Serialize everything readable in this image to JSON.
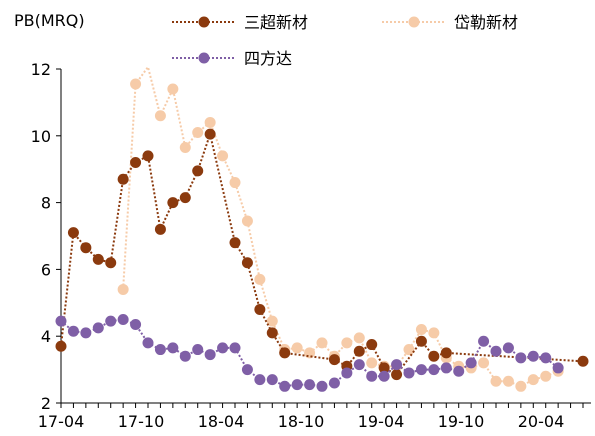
{
  "chart_data": {
    "type": "line",
    "ylabel": "PB(MRQ)",
    "ylim": [
      2,
      12
    ],
    "yticks": [
      "2",
      "4",
      "6",
      "8",
      "10",
      "12"
    ],
    "xtick_labels": [
      "17-04",
      "17-10",
      "18-04",
      "18-10",
      "19-04",
      "19-10",
      "20-04"
    ],
    "grid": false,
    "legend_position": "top",
    "series": [
      {
        "name": "三超新材",
        "color": "#8B3A0E",
        "line_style": "dotted",
        "values": [
          3.7,
          7.1,
          6.65,
          6.3,
          6.2,
          8.7,
          9.2,
          9.4,
          7.2,
          8.0,
          8.15,
          8.95,
          10.05,
          null,
          6.8,
          6.2,
          4.8,
          4.1,
          3.5,
          null,
          null,
          null,
          3.3,
          3.1,
          3.55,
          3.75,
          3.05,
          2.85,
          null,
          3.85,
          3.4,
          3.5,
          null,
          null,
          null,
          null,
          null,
          null,
          null,
          null,
          null,
          null,
          3.25
        ]
      },
      {
        "name": "岱勒新材",
        "color": "#F6CBA8",
        "line_style": "dotted",
        "values": [
          null,
          null,
          null,
          null,
          null,
          5.4,
          11.55,
          13.0,
          10.6,
          11.4,
          9.65,
          10.1,
          10.4,
          9.4,
          8.6,
          7.45,
          5.7,
          4.45,
          3.6,
          3.65,
          3.5,
          3.8,
          3.4,
          3.8,
          3.95,
          3.2,
          3.1,
          3.1,
          3.6,
          4.2,
          4.1,
          3.35,
          3.1,
          3.05,
          3.2,
          2.65,
          2.65,
          2.5,
          2.7,
          2.8,
          2.95,
          null,
          null
        ]
      },
      {
        "name": "四方达",
        "color": "#7F5FA6",
        "line_style": "dotted",
        "values": [
          4.45,
          4.15,
          4.1,
          4.25,
          4.45,
          4.5,
          4.35,
          3.8,
          3.6,
          3.65,
          3.4,
          3.6,
          3.45,
          3.65,
          3.65,
          3.0,
          2.7,
          2.7,
          2.5,
          2.55,
          2.55,
          2.5,
          2.6,
          2.9,
          3.15,
          2.8,
          2.8,
          3.15,
          2.9,
          3.0,
          3.0,
          3.05,
          2.95,
          3.2,
          3.85,
          3.55,
          3.65,
          3.35,
          3.4,
          3.35,
          3.05,
          null,
          null
        ]
      }
    ]
  }
}
